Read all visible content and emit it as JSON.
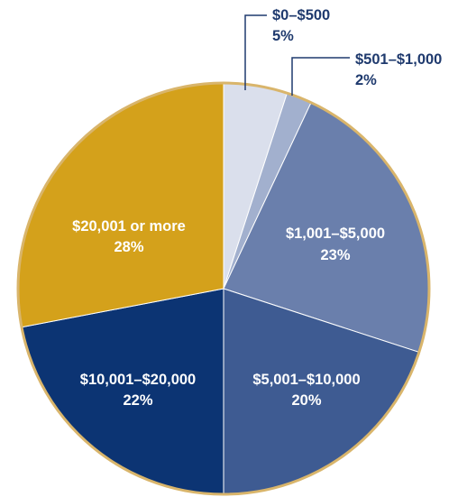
{
  "chart_data": {
    "type": "pie",
    "title": "",
    "start_angle_deg": 0,
    "direction": "clockwise",
    "outline_color": "#D9B56B",
    "slices": [
      {
        "category": "$0–$500",
        "value": 5,
        "value_label": "5%",
        "color": "#DADFEC",
        "label_position": "outside",
        "label_color": "#1F3A6E"
      },
      {
        "category": "$501–$1,000",
        "value": 2,
        "value_label": "2%",
        "color": "#A2B0CE",
        "label_position": "outside",
        "label_color": "#1F3A6E"
      },
      {
        "category": "$1,001–$5,000",
        "value": 23,
        "value_label": "23%",
        "color": "#6A7FAC",
        "label_position": "inside",
        "label_color": "#FFFFFF"
      },
      {
        "category": "$5,001–$10,000",
        "value": 20,
        "value_label": "20%",
        "color": "#3E5B92",
        "label_position": "inside",
        "label_color": "#FFFFFF"
      },
      {
        "category": "$10,001–$20,000",
        "value": 22,
        "value_label": "22%",
        "color": "#0C3473",
        "label_position": "inside",
        "label_color": "#FFFFFF"
      },
      {
        "category": "$20,001 or more",
        "value": 28,
        "value_label": "28%",
        "color": "#D4A11B",
        "label_position": "inside",
        "label_color": "#FFFFFF"
      }
    ]
  }
}
